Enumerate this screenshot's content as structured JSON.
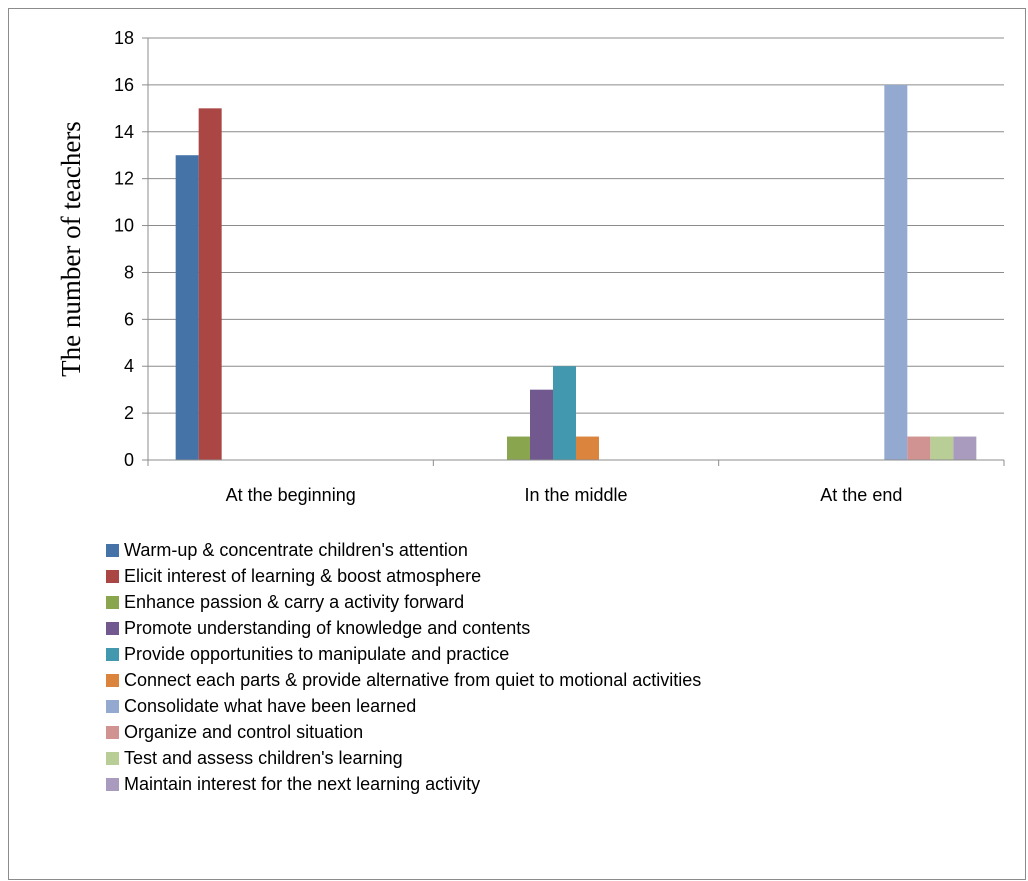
{
  "chart_data": {
    "type": "bar",
    "ylabel": "The number of teachers",
    "xlabel": "",
    "ylim": [
      0,
      18
    ],
    "ytick_step": 2,
    "grid": true,
    "legend_placement": "bottom",
    "categories": [
      "At the beginning",
      "In the middle",
      "At the end"
    ],
    "series": [
      {
        "name": "Warm-up & concentrate children's attention",
        "color": "#4572A7",
        "values": [
          13,
          0,
          0
        ]
      },
      {
        "name": "Elicit interest of learning & boost atmosphere",
        "color": "#AA4643",
        "values": [
          15,
          0,
          0
        ]
      },
      {
        "name": "Enhance passion & carry a activity forward",
        "color": "#89A54E",
        "values": [
          0,
          1,
          0
        ]
      },
      {
        "name": "Promote understanding of knowledge and contents",
        "color": "#71588F",
        "values": [
          0,
          3,
          0
        ]
      },
      {
        "name": "Provide opportunities to manipulate and practice",
        "color": "#4198AF",
        "values": [
          0,
          4,
          0
        ]
      },
      {
        "name": "Connect each parts & provide alternative from quiet to motional activities",
        "color": "#DB843D",
        "values": [
          0,
          1,
          0
        ]
      },
      {
        "name": "Consolidate what have been learned",
        "color": "#93A9CF",
        "values": [
          0,
          0,
          16
        ]
      },
      {
        "name": "Organize and control situation",
        "color": "#D19392",
        "values": [
          0,
          0,
          1
        ]
      },
      {
        "name": "Test and assess children's learning",
        "color": "#B9CD96",
        "values": [
          0,
          0,
          1
        ]
      },
      {
        "name": "Maintain interest for the next learning activity",
        "color": "#A99BBD",
        "values": [
          0,
          0,
          1
        ]
      }
    ]
  }
}
